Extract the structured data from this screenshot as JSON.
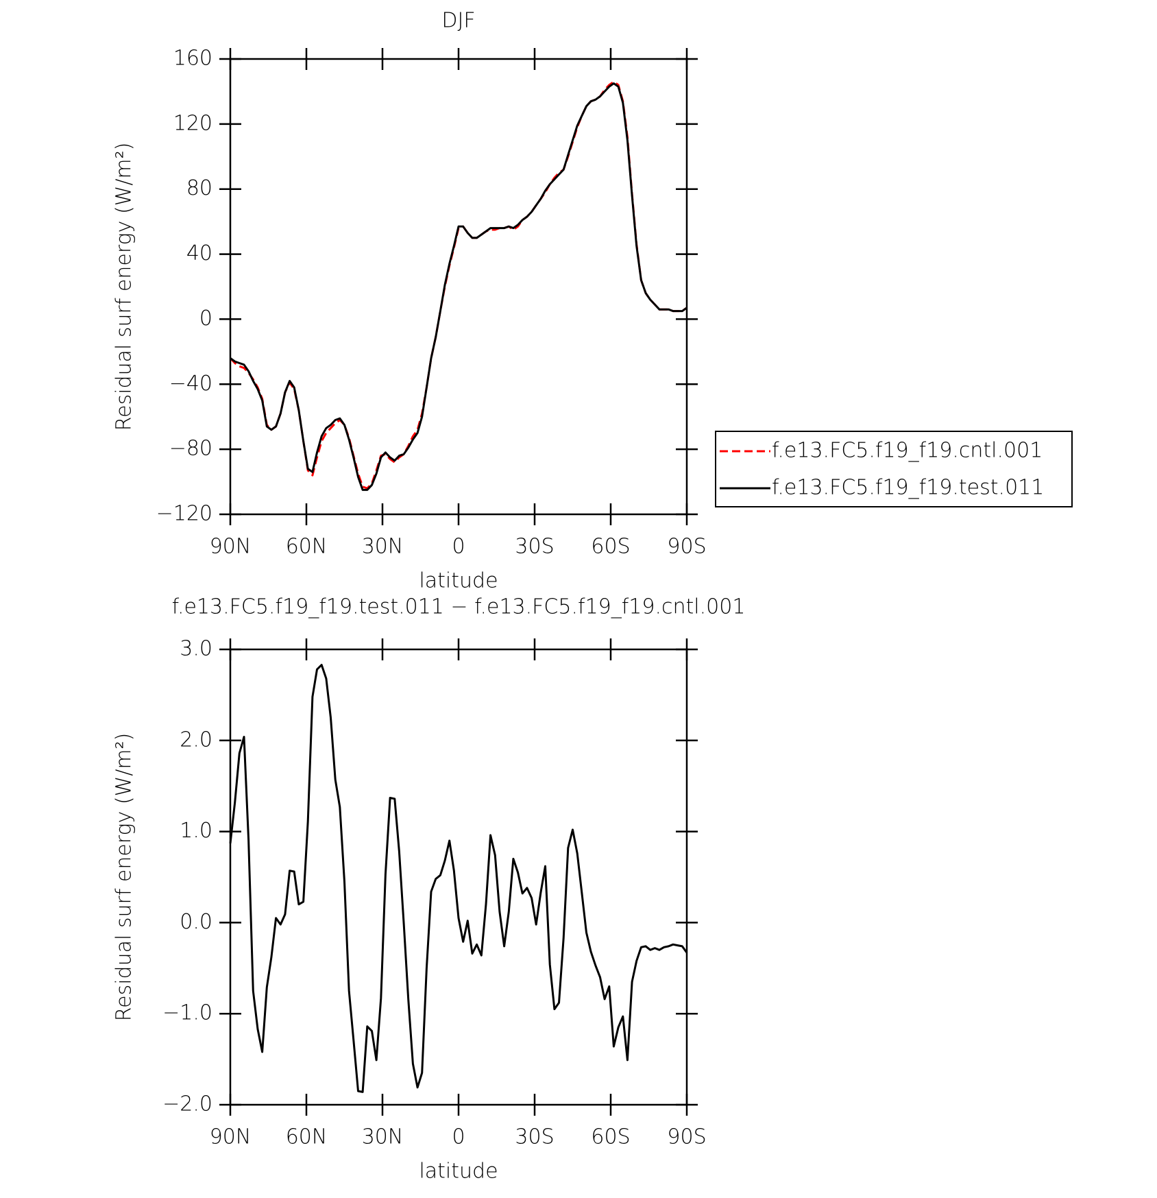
{
  "chart_data": [
    {
      "type": "line",
      "title": "DJF",
      "x": [
        90,
        88.2,
        86.4,
        84.6,
        82.8,
        81,
        79.2,
        77.4,
        75.6,
        73.8,
        72,
        70.2,
        68.4,
        66.6,
        64.8,
        63,
        61.2,
        59.4,
        57.6,
        55.8,
        54,
        52.2,
        50.4,
        48.6,
        46.8,
        45,
        43.2,
        41.4,
        39.6,
        37.8,
        36,
        34.2,
        32.4,
        30.6,
        28.8,
        27,
        25.2,
        23.4,
        21.6,
        19.8,
        18,
        16.2,
        14.4,
        12.6,
        10.8,
        9,
        7.2,
        5.4,
        3.6,
        1.8,
        0,
        -1.8,
        -3.6,
        -5.4,
        -7.2,
        -9,
        -10.8,
        -12.6,
        -14.4,
        -16.2,
        -18,
        -19.8,
        -21.6,
        -23.4,
        -25.2,
        -27,
        -28.8,
        -30.6,
        -32.4,
        -34.2,
        -36,
        -37.8,
        -39.6,
        -41.4,
        -43.2,
        -45,
        -46.8,
        -48.6,
        -50.4,
        -52.2,
        -54,
        -55.8,
        -57.6,
        -59.4,
        -61.2,
        -63,
        -64.8,
        -66.6,
        -68.4,
        -70.2,
        -72,
        -73.8,
        -75.6,
        -77.4,
        -79.2,
        -81,
        -82.8,
        -84.6,
        -86.4,
        -88.2,
        -90
      ],
      "series": [
        {
          "name": "f.e13.FC5.f19_f19.cntl.001",
          "color": "#ff0000",
          "linestyle": "dashed",
          "values": [
            -24,
            -27,
            -29,
            -30,
            -33,
            -37,
            -42,
            -49,
            -65,
            -68,
            -66,
            -58,
            -45,
            -39,
            -43,
            -56,
            -75,
            -93,
            -96,
            -85,
            -75,
            -70,
            -67,
            -64,
            -62,
            -65,
            -73,
            -84,
            -95,
            -103,
            -104,
            -101,
            -93,
            -84,
            -83,
            -86,
            -88,
            -85,
            -83,
            -78,
            -72,
            -68,
            -58,
            -42,
            -24,
            -11,
            5,
            20,
            33,
            44,
            56,
            57,
            53,
            50,
            50,
            52,
            54,
            55,
            55,
            56,
            56,
            57,
            55,
            57,
            61,
            63,
            66,
            70,
            74,
            78,
            83,
            87,
            90,
            92,
            100,
            109,
            118,
            125,
            131,
            134,
            135,
            137,
            141,
            144,
            146,
            144,
            134,
            112,
            77,
            46,
            24,
            16,
            12,
            9,
            6,
            6,
            6,
            5,
            5,
            5,
            7
          ]
        },
        {
          "name": "f.e13.FC5.f19_f19.test.011",
          "color": "#000000",
          "linestyle": "solid",
          "values": [
            -24,
            -26,
            -27,
            -28,
            -32,
            -38,
            -43,
            -50,
            -66,
            -68,
            -66,
            -58,
            -45,
            -38,
            -42,
            -56,
            -75,
            -92,
            -94,
            -82,
            -72,
            -67,
            -65,
            -62,
            -61,
            -65,
            -74,
            -85,
            -97,
            -105,
            -105,
            -102,
            -95,
            -85,
            -82,
            -85,
            -87,
            -84,
            -83,
            -79,
            -74,
            -70,
            -60,
            -42,
            -24,
            -11,
            5,
            21,
            34,
            45,
            57,
            57,
            53,
            50,
            50,
            52,
            54,
            56,
            56,
            56,
            56,
            57,
            56,
            58,
            61,
            63,
            66,
            70,
            74,
            79,
            83,
            86,
            89,
            92,
            101,
            110,
            119,
            125,
            131,
            134,
            135,
            137,
            140,
            143,
            145,
            143,
            133,
            110,
            76,
            45,
            24,
            16,
            12,
            9,
            6,
            6,
            6,
            5,
            5,
            5,
            7
          ]
        }
      ],
      "xlim": [
        90,
        -90
      ],
      "xticks": [
        {
          "value": 90,
          "label": "90N"
        },
        {
          "value": 60,
          "label": "60N"
        },
        {
          "value": 30,
          "label": "30N"
        },
        0,
        {
          "value": -30,
          "label": "30S"
        },
        {
          "value": -60,
          "label": "60S"
        },
        {
          "value": -90,
          "label": "90S"
        }
      ],
      "ylim": [
        -120,
        160
      ],
      "yticks": [
        {
          "value": -120,
          "label": "−120"
        },
        {
          "value": -80,
          "label": "−80"
        },
        {
          "value": -40,
          "label": "−40"
        },
        0,
        40,
        80,
        120,
        160
      ],
      "xlabel": "latitude",
      "ylabel": "Residual surf energy (W/m²)",
      "legend": "right"
    },
    {
      "type": "line",
      "title": "f.e13.FC5.f19_f19.test.011 − f.e13.FC5.f19_f19.cntl.001",
      "x": [
        90,
        88.2,
        86.4,
        84.6,
        82.8,
        81,
        79.2,
        77.4,
        75.6,
        73.8,
        72,
        70.2,
        68.4,
        66.6,
        64.8,
        63,
        61.2,
        59.4,
        57.6,
        55.8,
        54,
        52.2,
        50.4,
        48.6,
        46.8,
        45,
        43.2,
        41.4,
        39.6,
        37.8,
        36,
        34.2,
        32.4,
        30.6,
        28.8,
        27,
        25.2,
        23.4,
        21.6,
        19.8,
        18,
        16.2,
        14.4,
        12.6,
        10.8,
        9,
        7.2,
        5.4,
        3.6,
        1.8,
        0,
        -1.8,
        -3.6,
        -5.4,
        -7.2,
        -9,
        -10.8,
        -12.6,
        -14.4,
        -16.2,
        -18,
        -19.8,
        -21.6,
        -23.4,
        -25.2,
        -27,
        -28.8,
        -30.6,
        -32.4,
        -34.2,
        -36,
        -37.8,
        -39.6,
        -41.4,
        -43.2,
        -45,
        -46.8,
        -48.6,
        -50.4,
        -52.2,
        -54,
        -55.8,
        -57.6,
        -59.4,
        -61.2,
        -63,
        -64.8,
        -66.6,
        -68.4,
        -70.2,
        -72,
        -73.8,
        -75.6,
        -77.4,
        -79.2,
        -81,
        -82.8,
        -84.6,
        -86.4,
        -88.2,
        -90
      ],
      "series": [
        {
          "color": "#000000",
          "linestyle": "solid",
          "values": [
            0.87,
            1.32,
            1.86,
            2.04,
            0.91,
            -0.75,
            -1.17,
            -1.42,
            -0.71,
            -0.38,
            0.05,
            -0.02,
            0.09,
            0.57,
            0.56,
            0.2,
            0.23,
            1.11,
            2.48,
            2.78,
            2.83,
            2.68,
            2.25,
            1.57,
            1.27,
            0.45,
            -0.75,
            -1.29,
            -1.85,
            -1.86,
            -1.14,
            -1.19,
            -1.51,
            -0.83,
            0.53,
            1.37,
            1.36,
            0.78,
            -0.01,
            -0.84,
            -1.55,
            -1.81,
            -1.65,
            -0.5,
            0.34,
            0.48,
            0.52,
            0.68,
            0.9,
            0.57,
            0.05,
            -0.21,
            0.02,
            -0.34,
            -0.24,
            -0.36,
            0.2,
            0.96,
            0.74,
            0.12,
            -0.26,
            0.12,
            0.7,
            0.55,
            0.32,
            0.38,
            0.27,
            -0.02,
            0.33,
            0.62,
            -0.46,
            -0.95,
            -0.88,
            -0.17,
            0.82,
            1.02,
            0.76,
            0.33,
            -0.11,
            -0.32,
            -0.47,
            -0.6,
            -0.84,
            -0.7,
            -1.36,
            -1.15,
            -1.03,
            -1.51,
            -0.65,
            -0.42,
            -0.27,
            -0.26,
            -0.3,
            -0.28,
            -0.3,
            -0.27,
            -0.26,
            -0.24,
            -0.25,
            -0.26,
            -0.33
          ]
        }
      ],
      "xlim": [
        90,
        -90
      ],
      "xticks": [
        {
          "value": 90,
          "label": "90N"
        },
        {
          "value": 60,
          "label": "60N"
        },
        {
          "value": 30,
          "label": "30N"
        },
        0,
        {
          "value": -30,
          "label": "30S"
        },
        {
          "value": -60,
          "label": "60S"
        },
        {
          "value": -90,
          "label": "90S"
        }
      ],
      "ylim": [
        -2,
        3
      ],
      "yticks": [
        {
          "value": -2,
          "label": "−2.0"
        },
        {
          "value": -1,
          "label": "−1.0"
        },
        {
          "value": 0,
          "label": "0.0"
        },
        {
          "value": 1,
          "label": "1.0"
        },
        {
          "value": 2,
          "label": "2.0"
        },
        {
          "value": 3,
          "label": "3.0"
        }
      ],
      "xlabel": "latitude",
      "ylabel": "Residual surf energy (W/m²)"
    }
  ]
}
